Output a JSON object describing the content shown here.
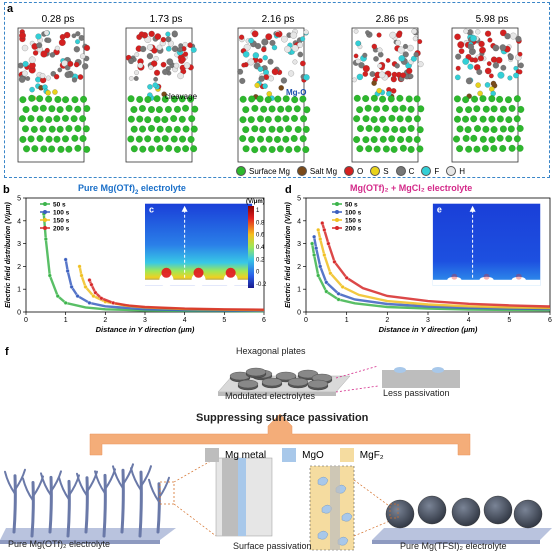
{
  "panel_a": {
    "label": "a",
    "times": [
      "0.28 ps",
      "1.73 ps",
      "2.16 ps",
      "2.86 ps",
      "5.98 ps"
    ],
    "annotations": {
      "cleavage": "cleavage",
      "mgo": "Mg-O"
    },
    "legend": [
      {
        "name": "Surface Mg",
        "color": "#2db82d"
      },
      {
        "name": "Salt Mg",
        "color": "#7a4a1a"
      },
      {
        "name": "O",
        "color": "#d42020"
      },
      {
        "name": "S",
        "color": "#e8d21c"
      },
      {
        "name": "C",
        "color": "#777777"
      },
      {
        "name": "F",
        "color": "#33cfd6"
      },
      {
        "name": "H",
        "color": "#e6e6e6"
      }
    ]
  },
  "panel_b": {
    "label": "b",
    "title_prefix": "Pure Mg(OTf)",
    "title_sub": "2",
    "title_suffix": " electrolyte",
    "title_color": "#1a6fc8",
    "xlabel": "Distance in Y direction (μm)",
    "ylabel": "Electric field distribution (V/μm)"
  },
  "panel_c": {
    "label": "c",
    "colorbar_title": "(V/μm)",
    "colorbar_ticks": [
      "1",
      "0.8",
      "0.6",
      "0.4",
      "0.2",
      "0",
      "-0.2"
    ]
  },
  "panel_d": {
    "label": "d",
    "title": "Mg(OTf)₂ + MgCl₂ electrolyte",
    "title_color": "#d42a8a",
    "xlabel": "Distance in Y direction (μm)",
    "ylabel": "Electric field distribution (V/μm)"
  },
  "panel_e": {
    "label": "e"
  },
  "panel_f": {
    "label": "f",
    "hex_title": "Hexagonal plates",
    "modulated": "Modulated electrolytes",
    "less_passivation": "Less passivation",
    "suppressing": "Suppressing surface passivation",
    "legend": [
      {
        "name": "Mg metal",
        "color": "#bdbdbd"
      },
      {
        "name": "MgO",
        "color": "#a8c8ea"
      },
      {
        "name": "MgF₂",
        "color": "#f5dca0"
      }
    ],
    "left_caption": "Pure Mg(OTf)₂ electrolyte",
    "middle_caption": "Surface passivation",
    "right_caption": "Pure Mg(TFSI)₂ electrolyte"
  },
  "chart_data": [
    {
      "type": "line",
      "title": "Pure Mg(OTf)2 electrolyte",
      "xlabel": "Distance in Y direction (μm)",
      "ylabel": "Electric field distribution (V/μm)",
      "xlim": [
        0,
        6
      ],
      "ylim": [
        0,
        5
      ],
      "x_ticks": [
        0,
        1,
        2,
        3,
        4,
        5,
        6
      ],
      "y_ticks": [
        0,
        1,
        2,
        3,
        4,
        5
      ],
      "series": [
        {
          "name": "50 s",
          "color": "#3cb44b",
          "x": [
            0.45,
            0.5,
            0.6,
            0.8,
            1.0,
            1.5,
            2.0,
            3.0,
            4.0,
            5.0,
            6.0
          ],
          "y": [
            4.3,
            3.2,
            1.6,
            0.7,
            0.4,
            0.2,
            0.12,
            0.07,
            0.05,
            0.04,
            0.03
          ]
        },
        {
          "name": "100 s",
          "color": "#3b5fbf",
          "x": [
            1.0,
            1.05,
            1.15,
            1.3,
            1.6,
            2.0,
            3.0,
            4.0,
            5.0,
            6.0
          ],
          "y": [
            2.3,
            1.8,
            1.1,
            0.7,
            0.4,
            0.25,
            0.12,
            0.08,
            0.06,
            0.05
          ]
        },
        {
          "name": "150 s",
          "color": "#f0c020",
          "x": [
            1.35,
            1.4,
            1.5,
            1.7,
            2.0,
            2.5,
            3.0,
            4.0,
            5.0,
            6.0
          ],
          "y": [
            2.0,
            1.6,
            1.1,
            0.7,
            0.45,
            0.28,
            0.2,
            0.13,
            0.1,
            0.08
          ]
        },
        {
          "name": "200 s",
          "color": "#d62828",
          "x": [
            1.6,
            1.65,
            1.75,
            1.9,
            2.2,
            2.6,
            3.0,
            4.0,
            5.0,
            6.0
          ],
          "y": [
            1.4,
            1.2,
            0.85,
            0.6,
            0.4,
            0.28,
            0.22,
            0.15,
            0.12,
            0.1
          ]
        }
      ]
    },
    {
      "type": "line",
      "title": "Mg(OTf)2 + MgCl2 electrolyte",
      "xlabel": "Distance in Y direction (μm)",
      "ylabel": "Electric field distribution (V/μm)",
      "xlim": [
        0,
        6
      ],
      "ylim": [
        0,
        5
      ],
      "x_ticks": [
        0,
        1,
        2,
        3,
        4,
        5,
        6
      ],
      "y_ticks": [
        0,
        1,
        2,
        3,
        4,
        5
      ],
      "series": [
        {
          "name": "50 s",
          "color": "#3cb44b",
          "x": [
            0.15,
            0.2,
            0.3,
            0.5,
            0.8,
            1.2,
            2.0,
            3.0,
            4.0,
            5.0,
            6.0
          ],
          "y": [
            3.0,
            2.5,
            1.6,
            0.9,
            0.55,
            0.38,
            0.22,
            0.15,
            0.11,
            0.09,
            0.08
          ]
        },
        {
          "name": "100 s",
          "color": "#3b5fbf",
          "x": [
            0.2,
            0.25,
            0.35,
            0.5,
            0.8,
            1.2,
            2.0,
            3.0,
            4.0,
            5.0,
            6.0
          ],
          "y": [
            3.3,
            2.8,
            2.0,
            1.3,
            0.8,
            0.55,
            0.35,
            0.24,
            0.18,
            0.15,
            0.13
          ]
        },
        {
          "name": "150 s",
          "color": "#f0c020",
          "x": [
            0.3,
            0.35,
            0.45,
            0.6,
            0.9,
            1.3,
            2.0,
            3.0,
            4.0,
            5.0,
            6.0
          ],
          "y": [
            3.6,
            3.2,
            2.5,
            1.7,
            1.1,
            0.75,
            0.48,
            0.33,
            0.25,
            0.2,
            0.17
          ]
        },
        {
          "name": "200 s",
          "color": "#d62828",
          "x": [
            0.4,
            0.45,
            0.55,
            0.7,
            1.0,
            1.4,
            2.0,
            3.0,
            4.0,
            5.0,
            6.0
          ],
          "y": [
            3.9,
            3.6,
            3.0,
            2.2,
            1.5,
            1.05,
            0.7,
            0.48,
            0.36,
            0.29,
            0.24
          ]
        }
      ]
    }
  ]
}
